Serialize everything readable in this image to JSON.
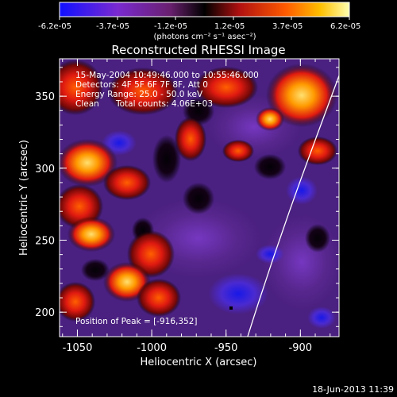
{
  "colorbar": {
    "labels": [
      "-6.2e-05",
      "-3.7e-05",
      "-1.2e-05",
      "1.2e-05",
      "3.7e-05",
      "6.2e-05"
    ],
    "units": "(photons cm⁻² s⁻¹ asec⁻²)",
    "colors": [
      "#1010ff",
      "#7a2ad0",
      "#6a2070",
      "#000000",
      "#b01010",
      "#ff5a00",
      "#ffc000",
      "#ffffb0"
    ]
  },
  "title": "Reconstructed RHESSI Image",
  "info": {
    "time_range": "15-May-2004 10:49:46.000 to 10:55:46.000",
    "detectors": "Detectors: 4F 5F 6F 7F 8F, Att 0",
    "energy": "Energy Range: 25.0 - 50.0 keV",
    "method": "Clean",
    "counts": "Total counts: 4.06E+03"
  },
  "peak_label": "Position of Peak = [-916,352]",
  "axes": {
    "xlabel": "Heliocentric X (arcsec)",
    "ylabel": "Heliocentric Y (arcsec)",
    "x_ticks": [
      {
        "value": -1050,
        "label": "-1050"
      },
      {
        "value": -1000,
        "label": "-1000"
      },
      {
        "value": -950,
        "label": "-950"
      },
      {
        "value": -900,
        "label": "-900"
      }
    ],
    "y_ticks": [
      {
        "value": 200,
        "label": "200"
      },
      {
        "value": 250,
        "label": "250"
      },
      {
        "value": 300,
        "label": "300"
      },
      {
        "value": 350,
        "label": "350"
      }
    ],
    "xlim": [
      -1062,
      -874
    ],
    "ylim": [
      183,
      376
    ]
  },
  "timestamp": "18-Jun-2013 11:39"
}
